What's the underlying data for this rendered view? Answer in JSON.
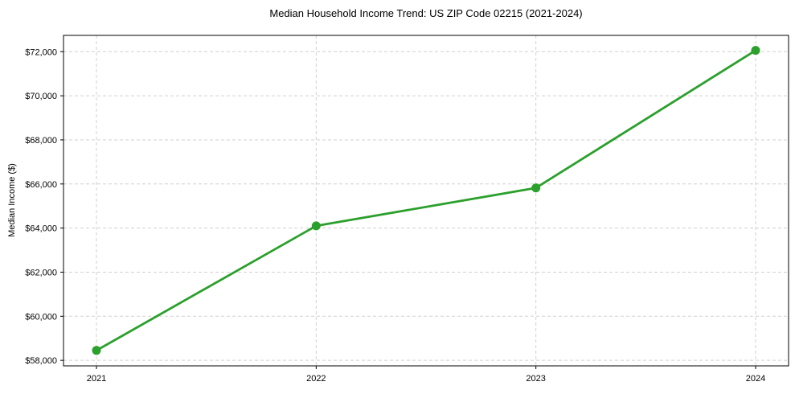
{
  "chart_data": {
    "type": "line",
    "title": "Median Household Income Trend: US ZIP Code 02215 (2021-2024)",
    "xlabel": "",
    "ylabel": "Median Income ($)",
    "x": [
      2021,
      2022,
      2023,
      2024
    ],
    "x_tick_labels": [
      "2021",
      "2022",
      "2023",
      "2024"
    ],
    "series": [
      {
        "name": "median-household-income",
        "values": [
          58450,
          64100,
          65820,
          72060
        ],
        "color": "#2ca02c",
        "marker": "circle",
        "line_width": 2.8,
        "marker_radius": 5.5
      }
    ],
    "xlim": [
      2020.85,
      2024.15
    ],
    "ylim": [
      57750,
      72740
    ],
    "yticks": [
      58000,
      60000,
      62000,
      64000,
      66000,
      68000,
      70000,
      72000
    ],
    "ytick_labels": [
      "$58,000",
      "$60,000",
      "$62,000",
      "$64,000",
      "$66,000",
      "$68,000",
      "$70,000",
      "$72,000"
    ],
    "grid": true,
    "grid_style": "dashed",
    "legend": "none",
    "colors": {
      "line": "#2ca02c",
      "grid": "#d0d0d0",
      "spine": "#000000",
      "tick_text": "#000000",
      "background": "#ffffff"
    }
  }
}
